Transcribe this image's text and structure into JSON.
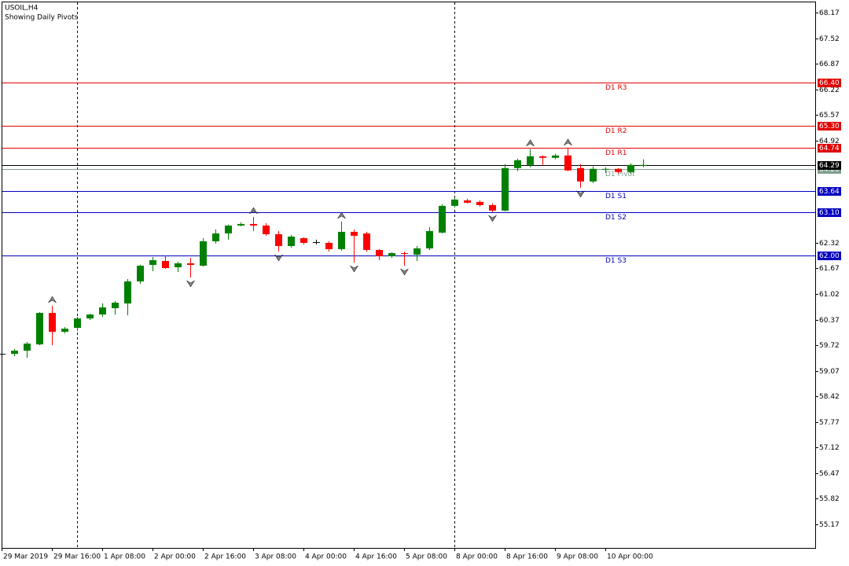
{
  "chart_data": {
    "type": "candlestick",
    "title": "USOIL,H4",
    "subtitle": "Showing Daily Pivots",
    "categories": [
      "29 Mar 2019",
      null,
      null,
      null,
      "29 Mar 16:00",
      null,
      null,
      null,
      "1 Apr 08:00",
      null,
      null,
      null,
      "2 Apr 00:00",
      null,
      null,
      null,
      "2 Apr 16:00",
      null,
      null,
      null,
      "3 Apr 08:00",
      null,
      null,
      null,
      "4 Apr 00:00",
      null,
      null,
      null,
      "4 Apr 16:00",
      null,
      null,
      null,
      "5 Apr 08:00",
      null,
      null,
      null,
      "8 Apr 00:00",
      null,
      null,
      null,
      "8 Apr 16:00",
      null,
      null,
      null,
      "9 Apr 08:00",
      null,
      null,
      null,
      "10 Apr 00:00",
      null,
      null,
      null
    ],
    "open": [
      59.5,
      59.5,
      59.58,
      59.74,
      60.54,
      60.06,
      60.16,
      60.4,
      60.5,
      60.66,
      60.78,
      61.34,
      61.76,
      61.86,
      61.7,
      61.8,
      61.74,
      62.36,
      62.56,
      62.76,
      62.8,
      62.76,
      62.54,
      62.24,
      62.44,
      62.34,
      62.32,
      62.16,
      62.6,
      62.56,
      62.14,
      61.98,
      62.06,
      62.02,
      62.18,
      62.58,
      63.26,
      63.4,
      63.36,
      63.28,
      63.14,
      64.22,
      64.3,
      64.52,
      64.48,
      64.54,
      64.22,
      63.88,
      64.18,
      64.2,
      64.12,
      64.28
    ],
    "high": [
      59.52,
      59.62,
      59.8,
      60.56,
      60.72,
      60.18,
      60.44,
      60.52,
      60.78,
      60.84,
      61.4,
      61.76,
      61.96,
      62.0,
      61.84,
      61.94,
      62.44,
      62.66,
      62.78,
      62.84,
      62.98,
      62.82,
      62.62,
      62.52,
      62.46,
      62.4,
      62.36,
      62.86,
      62.66,
      62.6,
      62.16,
      62.08,
      62.1,
      62.24,
      62.72,
      63.3,
      63.48,
      63.44,
      63.4,
      63.32,
      64.32,
      64.46,
      64.7,
      64.54,
      64.58,
      64.72,
      64.32,
      64.26,
      64.24,
      64.22,
      64.34,
      64.44
    ],
    "low": [
      59.48,
      59.44,
      59.4,
      59.72,
      59.72,
      60.02,
      60.08,
      60.36,
      60.44,
      60.5,
      60.48,
      61.28,
      61.6,
      61.66,
      61.58,
      61.44,
      61.72,
      62.3,
      62.4,
      62.74,
      62.62,
      62.5,
      62.1,
      62.2,
      62.28,
      62.28,
      62.1,
      62.12,
      61.82,
      62.1,
      61.88,
      61.94,
      61.74,
      61.86,
      62.14,
      62.56,
      63.22,
      63.32,
      63.24,
      63.1,
      63.12,
      64.14,
      64.24,
      64.3,
      64.44,
      64.14,
      63.72,
      63.84,
      64.1,
      64.08,
      64.08,
      64.24
    ],
    "close": [
      59.5,
      59.58,
      59.76,
      60.54,
      60.06,
      60.14,
      60.4,
      60.5,
      60.68,
      60.8,
      61.34,
      61.74,
      61.88,
      61.68,
      61.8,
      61.76,
      62.36,
      62.56,
      62.76,
      62.8,
      62.76,
      62.54,
      62.24,
      62.48,
      62.32,
      62.34,
      62.16,
      62.6,
      62.5,
      62.14,
      61.98,
      62.06,
      62.04,
      62.18,
      62.62,
      63.26,
      63.42,
      63.34,
      63.28,
      63.14,
      64.22,
      64.42,
      64.52,
      64.48,
      64.54,
      64.16,
      63.88,
      64.2,
      64.2,
      64.12,
      64.3,
      64.3
    ],
    "up_color": "#008000",
    "down_color": "#ff0000",
    "doji_color": "#000000",
    "fractals": {
      "up": [
        4,
        20,
        27,
        42,
        45
      ],
      "down": [
        15,
        22,
        28,
        32,
        39,
        46
      ]
    },
    "ylim": [
      54.57,
      68.45
    ],
    "yticks": [
      68.17,
      67.52,
      66.87,
      66.22,
      65.57,
      64.92,
      62.32,
      61.67,
      61.02,
      60.37,
      59.72,
      59.07,
      58.42,
      57.77,
      57.12,
      56.47,
      55.82,
      55.17
    ],
    "levels": [
      {
        "name": "D1 R3",
        "value": 66.4,
        "label": "66.40",
        "color": "#e00000"
      },
      {
        "name": "D1 R2",
        "value": 65.3,
        "label": "65.30",
        "color": "#e00000"
      },
      {
        "name": "D1 R1",
        "value": 64.74,
        "label": "64.74",
        "color": "#e00000"
      },
      {
        "name": "D1 Pivot",
        "value": 64.2,
        "label": "64.20",
        "color": "#7f9f8f"
      },
      {
        "name": "D1 S1",
        "value": 63.64,
        "label": "63.64",
        "color": "#0000c0"
      },
      {
        "name": "D1 S2",
        "value": 63.1,
        "label": "63.10",
        "color": "#0000c0"
      },
      {
        "name": "D1 S3",
        "value": 62.0,
        "label": "62.00",
        "color": "#0000c0"
      }
    ],
    "price_line": {
      "value": 64.29,
      "label": "64.29",
      "color": "#000000"
    }
  }
}
